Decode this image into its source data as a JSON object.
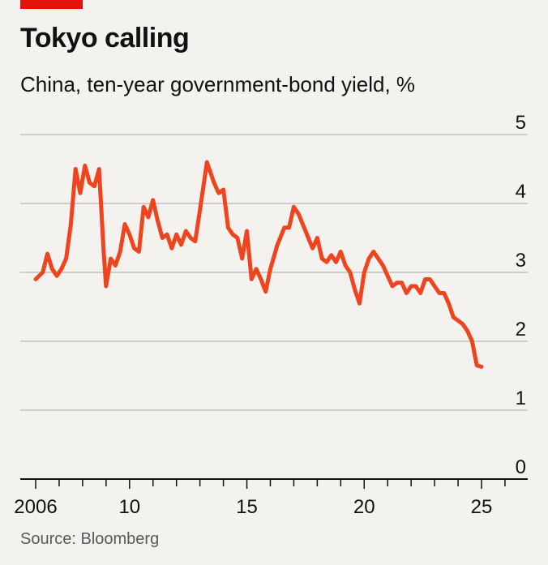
{
  "header": {
    "title": "Tokyo calling",
    "subtitle": "China, ten-year government-bond yield, %"
  },
  "footer": {
    "source": "Source: Bloomberg"
  },
  "colors": {
    "accent": "#e3120b",
    "line": "#f0441e",
    "background": "#f3f2ee",
    "grid": "#b7b7b7"
  },
  "chart_data": {
    "type": "line",
    "title": "Tokyo calling",
    "subtitle": "China, ten-year government-bond yield, %",
    "xlabel": "",
    "ylabel": "",
    "xlim": [
      2005.8,
      2026.8
    ],
    "ylim": [
      0,
      5
    ],
    "y_ticks": [
      "0",
      "1",
      "2",
      "3",
      "4",
      "5"
    ],
    "x_ticks": [
      {
        "value": 2006,
        "label": "2006"
      },
      {
        "value": 2010,
        "label": "10"
      },
      {
        "value": 2015,
        "label": "15"
      },
      {
        "value": 2020,
        "label": "20"
      },
      {
        "value": 2025,
        "label": "25"
      }
    ],
    "grid": true,
    "legend": "none",
    "series": [
      {
        "x": [
          2006.0,
          2006.3,
          2006.5,
          2006.7,
          2006.9,
          2007.1,
          2007.3,
          2007.5,
          2007.7,
          2007.9,
          2008.1,
          2008.3,
          2008.5,
          2008.7,
          2008.9,
          2009.0,
          2009.2,
          2009.4,
          2009.6,
          2009.8,
          2010.0,
          2010.2,
          2010.4,
          2010.6,
          2010.8,
          2011.0,
          2011.2,
          2011.4,
          2011.6,
          2011.8,
          2012.0,
          2012.2,
          2012.4,
          2012.6,
          2012.8,
          2013.0,
          2013.3,
          2013.6,
          2013.8,
          2014.0,
          2014.2,
          2014.4,
          2014.6,
          2014.8,
          2015.0,
          2015.2,
          2015.4,
          2015.6,
          2015.8,
          2016.0,
          2016.3,
          2016.6,
          2016.8,
          2017.0,
          2017.2,
          2017.5,
          2017.8,
          2018.0,
          2018.2,
          2018.4,
          2018.6,
          2018.8,
          2019.0,
          2019.2,
          2019.4,
          2019.6,
          2019.8,
          2020.0,
          2020.2,
          2020.4,
          2020.6,
          2020.8,
          2021.0,
          2021.2,
          2021.4,
          2021.6,
          2021.8,
          2022.0,
          2022.2,
          2022.4,
          2022.6,
          2022.8,
          2023.0,
          2023.2,
          2023.4,
          2023.6,
          2023.8,
          2024.0,
          2024.2,
          2024.4,
          2024.6,
          2024.8,
          2025.0
        ],
        "values": [
          2.9,
          3.0,
          3.27,
          3.05,
          2.95,
          3.05,
          3.2,
          3.7,
          4.5,
          4.15,
          4.55,
          4.3,
          4.25,
          4.5,
          3.3,
          2.8,
          3.2,
          3.1,
          3.3,
          3.7,
          3.55,
          3.35,
          3.3,
          3.95,
          3.8,
          4.05,
          3.75,
          3.5,
          3.55,
          3.35,
          3.55,
          3.4,
          3.6,
          3.5,
          3.45,
          3.9,
          4.6,
          4.3,
          4.15,
          4.2,
          3.65,
          3.55,
          3.5,
          3.2,
          3.6,
          2.9,
          3.05,
          2.9,
          2.72,
          3.05,
          3.4,
          3.65,
          3.65,
          3.95,
          3.85,
          3.6,
          3.35,
          3.5,
          3.2,
          3.15,
          3.25,
          3.15,
          3.3,
          3.1,
          3.0,
          2.75,
          2.55,
          3.0,
          3.2,
          3.3,
          3.2,
          3.1,
          2.95,
          2.8,
          2.85,
          2.85,
          2.7,
          2.8,
          2.8,
          2.7,
          2.9,
          2.9,
          2.8,
          2.7,
          2.7,
          2.55,
          2.35,
          2.3,
          2.25,
          2.15,
          2.0,
          1.65,
          1.63
        ]
      }
    ]
  }
}
